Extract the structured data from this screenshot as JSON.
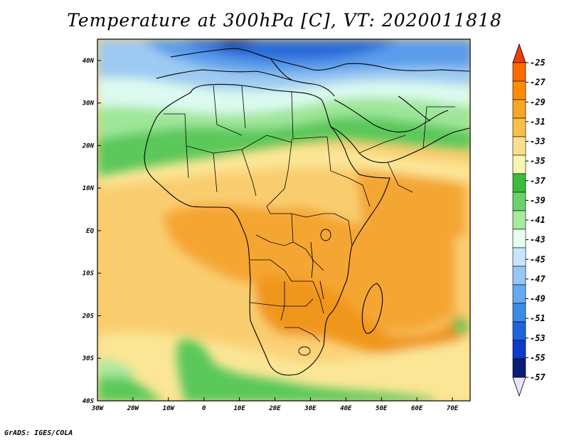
{
  "title": "Temperature at 300hPa [C], VT: 2020011818",
  "credit": "GrADS: IGES/COLA",
  "map": {
    "lon_range": [
      -30,
      75
    ],
    "lat_range": [
      -40,
      45
    ],
    "lat_ticks": [
      {
        "value": 40,
        "label": "40N"
      },
      {
        "value": 30,
        "label": "30N"
      },
      {
        "value": 20,
        "label": "20N"
      },
      {
        "value": 10,
        "label": "10N"
      },
      {
        "value": 0,
        "label": "EQ"
      },
      {
        "value": -10,
        "label": "10S"
      },
      {
        "value": -20,
        "label": "20S"
      },
      {
        "value": -30,
        "label": "30S"
      },
      {
        "value": -40,
        "label": "40S"
      }
    ],
    "lon_ticks": [
      {
        "value": -30,
        "label": "30W"
      },
      {
        "value": -20,
        "label": "20W"
      },
      {
        "value": -10,
        "label": "10W"
      },
      {
        "value": 0,
        "label": "0"
      },
      {
        "value": 10,
        "label": "10E"
      },
      {
        "value": 20,
        "label": "20E"
      },
      {
        "value": 30,
        "label": "30E"
      },
      {
        "value": 40,
        "label": "40E"
      },
      {
        "value": 50,
        "label": "50E"
      },
      {
        "value": 60,
        "label": "60E"
      },
      {
        "value": 70,
        "label": "70E"
      }
    ]
  },
  "colorbar": {
    "labels": [
      "-25",
      "-27",
      "-29",
      "-31",
      "-33",
      "-35",
      "-37",
      "-39",
      "-41",
      "-43",
      "-45",
      "-47",
      "-49",
      "-51",
      "-53",
      "-55",
      "-57"
    ],
    "top_color": "#f03c0a",
    "bottom_color": "#e6e6ff",
    "colors": [
      "#ff6a00",
      "#ff8c00",
      "#f5a623",
      "#f7c04a",
      "#fbe08c",
      "#f7f5b4",
      "#3cbc3c",
      "#6ad26a",
      "#a8e8a0",
      "#e6fff0",
      "#c8e6ff",
      "#96c8f5",
      "#64aaf0",
      "#3c8ce6",
      "#1e64dc",
      "#0a3cc8",
      "#0a1e78"
    ]
  }
}
